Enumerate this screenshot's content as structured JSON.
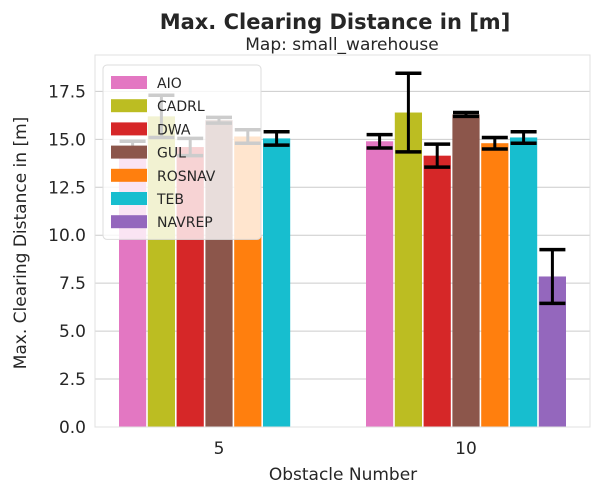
{
  "chart_data": {
    "type": "bar",
    "title": "Max. Clearing Distance in [m]",
    "subtitle": "Map: small_warehouse",
    "xlabel": "Obstacle Number",
    "ylabel": "Max. Clearing Distance in [m]",
    "categories": [
      "5",
      "10"
    ],
    "ylim": [
      0,
      19.4
    ],
    "yticks": [
      "0.0",
      "2.5",
      "5.0",
      "7.5",
      "10.0",
      "12.5",
      "15.0",
      "17.5"
    ],
    "grid": true,
    "legend_position": "top-left",
    "series": [
      {
        "name": "AIO",
        "color": "#e377c2",
        "values": [
          14.6,
          14.9
        ],
        "errors": [
          0.3,
          0.35
        ]
      },
      {
        "name": "CADRL",
        "color": "#bcbd22",
        "values": [
          16.2,
          16.4
        ],
        "errors": [
          1.1,
          2.05
        ]
      },
      {
        "name": "DWA",
        "color": "#d62728",
        "values": [
          14.6,
          14.15
        ],
        "errors": [
          0.45,
          0.6
        ]
      },
      {
        "name": "GUL",
        "color": "#8c564b",
        "values": [
          16.0,
          16.3
        ],
        "errors": [
          0.15,
          0.1
        ]
      },
      {
        "name": "ROSNAV",
        "color": "#ff7f0e",
        "values": [
          15.15,
          14.8
        ],
        "errors": [
          0.35,
          0.3
        ]
      },
      {
        "name": "TEB",
        "color": "#17becf",
        "values": [
          15.05,
          15.1
        ],
        "errors": [
          0.35,
          0.3
        ]
      },
      {
        "name": "NAVREP",
        "color": "#9467bd",
        "values": [
          null,
          7.85
        ],
        "errors": [
          null,
          1.4
        ]
      }
    ]
  }
}
